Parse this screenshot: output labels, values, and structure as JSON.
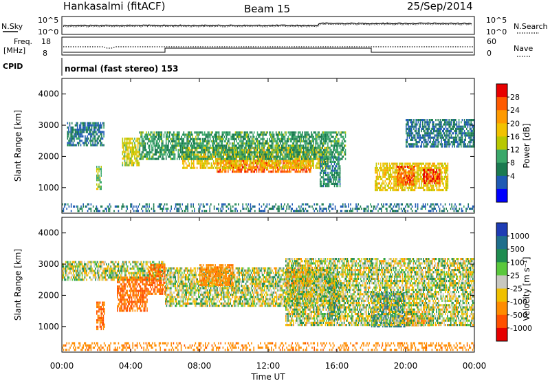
{
  "header": {
    "station": "Hankasalmi (fitACF)",
    "beam": "Beam 15",
    "date": "25/Sep/2014"
  },
  "noise_panel": {
    "left_label": "N.Sky",
    "right_label": "N.Search",
    "left_ticks": [
      "10^5",
      "10^0"
    ],
    "right_ticks": [
      "10^5",
      "10^0"
    ]
  },
  "freq_panel": {
    "left_label": "Freq.",
    "left_unit": "[MHz]",
    "right_label": "Nave",
    "left_ticks": [
      "18",
      "8"
    ],
    "right_ticks": [
      "60",
      "0"
    ]
  },
  "cpid_panel": {
    "label": "CPID",
    "text": "normal (fast stereo) 153"
  },
  "x_axis": {
    "label": "Time UT",
    "ticks": [
      "00:00",
      "04:00",
      "08:00",
      "12:00",
      "16:00",
      "20:00",
      "00:00"
    ]
  },
  "chart_data": [
    {
      "type": "heatmap",
      "name": "power",
      "ylabel": "Slant Range [km]",
      "yticks": [
        "4000",
        "3000",
        "2000",
        "1000"
      ],
      "ylim": [
        180,
        4500
      ],
      "xlim_hours": [
        0,
        24
      ],
      "colorbar": {
        "label": "Power [dB]",
        "ticks": [
          "28",
          "24",
          "20",
          "16",
          "12",
          "8",
          "4"
        ],
        "colors": [
          "#e80000",
          "#ff5a00",
          "#ff9a00",
          "#f2c200",
          "#b8c800",
          "#3aa86a",
          "#1a7a50",
          "#1e5ab4",
          "#0000ff"
        ]
      },
      "regions": [
        {
          "t": [
            9.0,
            14.5
          ],
          "r": [
            1450,
            1900
          ],
          "level": 26
        },
        {
          "t": [
            7.0,
            15.5
          ],
          "r": [
            1600,
            2300
          ],
          "level": 18
        },
        {
          "t": [
            4.5,
            16.5
          ],
          "r": [
            1900,
            2800
          ],
          "level": 10
        },
        {
          "t": [
            0.3,
            2.5
          ],
          "r": [
            2300,
            3100
          ],
          "level": 6
        },
        {
          "t": [
            2.0,
            2.3
          ],
          "r": [
            900,
            1700
          ],
          "level": 14
        },
        {
          "t": [
            3.5,
            4.5
          ],
          "r": [
            1700,
            2600
          ],
          "level": 16
        },
        {
          "t": [
            15.0,
            16.2
          ],
          "r": [
            1000,
            2000
          ],
          "level": 8
        },
        {
          "t": [
            18.2,
            22.5
          ],
          "r": [
            900,
            1800
          ],
          "level": 18
        },
        {
          "t": [
            19.5,
            20.5
          ],
          "r": [
            1100,
            1700
          ],
          "level": 26
        },
        {
          "t": [
            21.0,
            22.0
          ],
          "r": [
            1100,
            1600
          ],
          "level": 28
        },
        {
          "t": [
            20.0,
            24.0
          ],
          "r": [
            2300,
            3200
          ],
          "level": 6
        },
        {
          "t": [
            0.0,
            24.0
          ],
          "r": [
            200,
            500
          ],
          "level": 6
        }
      ]
    },
    {
      "type": "heatmap",
      "name": "velocity",
      "ylabel": "Slant Range [km]",
      "yticks": [
        "4000",
        "3000",
        "2000",
        "1000"
      ],
      "ylim": [
        180,
        4500
      ],
      "xlim_hours": [
        0,
        24
      ],
      "colorbar": {
        "label": "Velocity [m s⁻¹]",
        "ticks": [
          "1000",
          "500",
          "100",
          "25",
          "-25",
          "-100",
          "-500",
          "-1000"
        ],
        "colors": [
          "#1e3cb4",
          "#1e6e8c",
          "#1e8c50",
          "#5ac83c",
          "#c8c8c0",
          "#f0c000",
          "#ff8c00",
          "#ff5000",
          "#e60000"
        ]
      },
      "regions": [
        {
          "t": [
            6.0,
            16.0
          ],
          "r": [
            1600,
            2900
          ],
          "vel": 0
        },
        {
          "t": [
            0.0,
            6.0
          ],
          "r": [
            2500,
            3100
          ],
          "vel": 0
        },
        {
          "t": [
            2.0,
            2.5
          ],
          "r": [
            900,
            1800
          ],
          "vel": -400
        },
        {
          "t": [
            3.2,
            5.0
          ],
          "r": [
            1500,
            2600
          ],
          "vel": -400
        },
        {
          "t": [
            5.0,
            6.0
          ],
          "r": [
            2000,
            3000
          ],
          "vel": -400
        },
        {
          "t": [
            8.0,
            10.0
          ],
          "r": [
            2300,
            3000
          ],
          "vel": -300
        },
        {
          "t": [
            13.0,
            14.5
          ],
          "r": [
            2300,
            2900
          ],
          "vel": -300
        },
        {
          "t": [
            15.5,
            16.2
          ],
          "r": [
            1200,
            2600
          ],
          "vel": 300
        },
        {
          "t": [
            18.0,
            20.0
          ],
          "r": [
            1000,
            2100
          ],
          "vel": 400
        },
        {
          "t": [
            20.0,
            21.5
          ],
          "r": [
            1000,
            1500
          ],
          "vel": -300
        },
        {
          "t": [
            0.0,
            24.0
          ],
          "r": [
            200,
            500
          ],
          "vel": -300
        },
        {
          "t": [
            13.0,
            24.0
          ],
          "r": [
            1000,
            3200
          ],
          "vel": 0
        }
      ]
    }
  ]
}
